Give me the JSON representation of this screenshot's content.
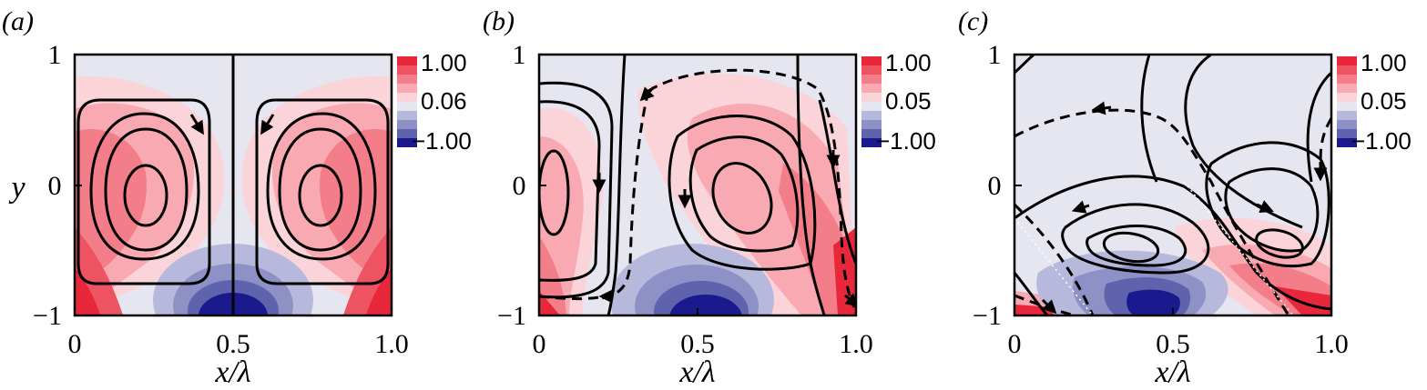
{
  "chart_data": [
    {
      "type": "heatmap",
      "panel_label": "(a)",
      "xlabel": "x/λ",
      "ylabel": "y",
      "xticks": [
        "0",
        "0.5",
        "1.0"
      ],
      "yticks": [
        "1",
        "0",
        "−1"
      ],
      "xlim": [
        0,
        1
      ],
      "ylim": [
        -1,
        1
      ],
      "colorbar": {
        "labels": [
          "1.00",
          "0.06",
          "−1.00"
        ],
        "levels": [
          1.0,
          0.06,
          -1.0
        ]
      },
      "overlay": "streamlines: two counter-rotating cells centred near x/λ = 0.22 and 0.78, y = −0.1"
    },
    {
      "type": "heatmap",
      "panel_label": "(b)",
      "xlabel": "x/λ",
      "ylabel": "",
      "xticks": [
        "0",
        "0.5",
        "1.0"
      ],
      "yticks": [
        "1",
        "0",
        "−1"
      ],
      "xlim": [
        0,
        1
      ],
      "ylim": [
        -1,
        1
      ],
      "colorbar": {
        "labels": [
          "1.00",
          "0.05",
          "−1.00"
        ],
        "levels": [
          1.0,
          0.05,
          -1.0
        ]
      },
      "overlay": "streamlines: tilted cells near x/λ = 0.05 and 0.6, dashed separatrices"
    },
    {
      "type": "heatmap",
      "panel_label": "(c)",
      "xlabel": "x/λ",
      "ylabel": "",
      "xticks": [
        "0",
        "0.5",
        "1.0"
      ],
      "yticks": [
        "1",
        "0",
        "−1"
      ],
      "xlim": [
        0,
        1
      ],
      "ylim": [
        -1,
        1
      ],
      "colorbar": {
        "labels": [
          "1.00",
          "0.05",
          "−1.00"
        ],
        "levels": [
          1.0,
          0.05,
          -1.0
        ]
      },
      "overlay": "streamlines: strongly tilted cells near x/λ = 0.35 and 0.8, y = −0.5"
    }
  ],
  "colors": {
    "background_level": "#e6e6f0",
    "reds": [
      "#fbd4d9",
      "#f8a9b1",
      "#f37d88",
      "#ee5362",
      "#e8273b"
    ],
    "blues": [
      "#b7b9dc",
      "#8e91c6",
      "#5f62ac",
      "#1a1a8e"
    ]
  }
}
